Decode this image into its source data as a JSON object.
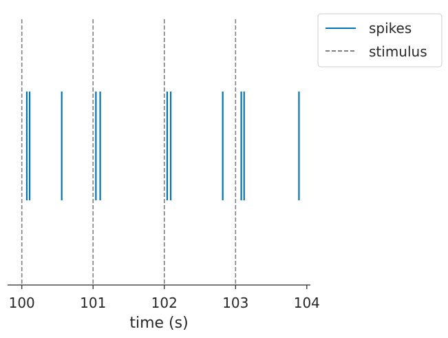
{
  "chart_data": {
    "type": "eventplot",
    "xlabel": "time (s)",
    "ylabel": "",
    "xlim": [
      99.8,
      104.05
    ],
    "xticks": [
      100,
      101,
      102,
      103,
      104
    ],
    "xtick_labels": [
      "100",
      "101",
      "102",
      "103",
      "104"
    ],
    "grid": false,
    "legend_position": "outside top-right",
    "series": [
      {
        "name": "spikes",
        "kind": "event",
        "color": "#0173b2",
        "style": "solid",
        "values": [
          100.07,
          100.11,
          100.56,
          101.04,
          101.1,
          102.04,
          102.09,
          102.82,
          103.08,
          103.12,
          103.89
        ]
      },
      {
        "name": "stimulus",
        "kind": "vline",
        "color": "#7f7f7f",
        "style": "dashed",
        "values": [
          100,
          101,
          102,
          103
        ]
      }
    ]
  }
}
